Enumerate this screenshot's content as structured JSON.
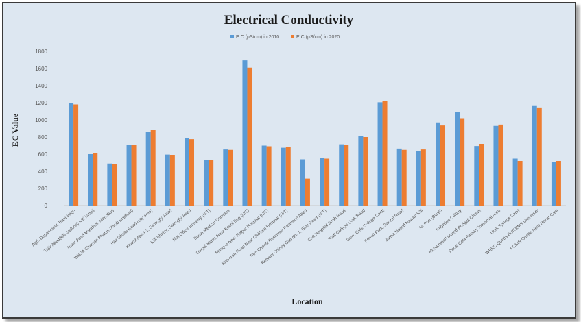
{
  "chart_data": {
    "type": "bar",
    "title": "Electrical Conductivity",
    "xlabel": "Location",
    "ylabel": "EC Value",
    "ylim": [
      0,
      1800
    ],
    "yticks": [
      0,
      200,
      400,
      600,
      800,
      1000,
      1200,
      1400,
      1600,
      1800
    ],
    "grid": false,
    "legend_position": "top",
    "colors": [
      "#5b9bd5",
      "#ed7d31"
    ],
    "categories": [
      "Agri. Department, Rani Bagh",
      "Tajik Abad(killi-Jadoon) Killi Ismail",
      "Nasir Abad Mandani, Manobad",
      "WASA Chaman Phatak (Ayub Stadium)",
      "Haji Ghaibi Road (city area)",
      "Kharot Abad-1, Samngly Road",
      "Killi Khaizy, Samngly Road",
      "Met Office Brewery (N/T)",
      "Bolan Medical Complex",
      "Gurgai Karez Near Kechi Beg (N/T)",
      "Mosque Near Helper Hospital (N/T)",
      "Khamran Road Near Children Hospital (N/T)",
      "Taro Chowk Reservoir Pashtoon Abad",
      "Rehmat Colony Gali No. 1, Sirki Road (N/T)",
      "Civil Hospital Jinah Road",
      "Staff College Urak Road",
      "Govt. Girls College Cantt",
      "Forest Park, Sabzal Road",
      "Jamia Masjid Nawan Killi",
      "Air Port (Balali)",
      "Irrigation Colony",
      "Muhammad Masjid Podgali Chowk",
      "Pepsi Cola Factory Industrial Area",
      "Urak Springs Cantt",
      "WRRC Quetta BUITEMS University",
      "PCSIR Quetta Near Hazar Ganj"
    ],
    "series": [
      {
        "name": "E.C (µS/cm) in 2010",
        "values": [
          1195,
          600,
          490,
          710,
          860,
          595,
          790,
          530,
          655,
          1695,
          700,
          675,
          540,
          555,
          715,
          810,
          1205,
          665,
          640,
          970,
          1090,
          695,
          930,
          548,
          1170,
          512
        ]
      },
      {
        "name": "E.C (µS/cm) in 2020",
        "values": [
          1180,
          615,
          480,
          705,
          880,
          592,
          775,
          528,
          650,
          1610,
          692,
          688,
          315,
          548,
          706,
          800,
          1220,
          650,
          655,
          935,
          1020,
          720,
          945,
          520,
          1145,
          520
        ]
      }
    ]
  }
}
